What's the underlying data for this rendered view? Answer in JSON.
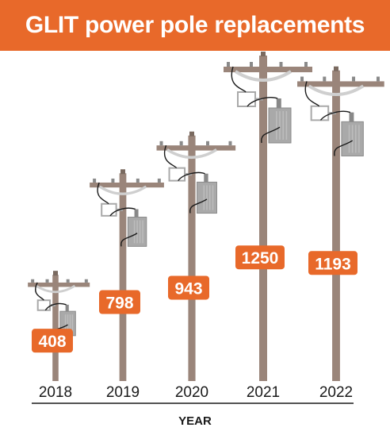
{
  "title": "GLIT power pole replacements",
  "chart_data": {
    "type": "bar",
    "categories": [
      "2018",
      "2019",
      "2020",
      "2021",
      "2022"
    ],
    "values": [
      408,
      798,
      943,
      1250,
      1193
    ],
    "value_labels": [
      "408",
      "798",
      "943",
      "1250",
      "1193"
    ],
    "xlabel": "YEAR",
    "ylabel": "",
    "colors": {
      "accent": "#e8692a",
      "pole": "#9a857a",
      "hardware": "#a9a9a9",
      "wire": "#1a1a1a"
    }
  }
}
